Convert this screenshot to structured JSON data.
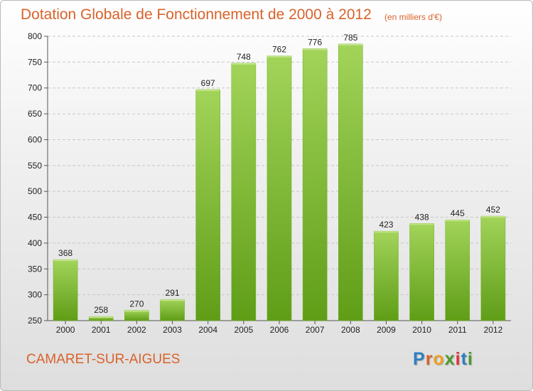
{
  "title": "Dotation Globale de Fonctionnement de 2000 à 2012",
  "subtitle": "(en milliers d'€)",
  "commune": "CAMARET-SUR-AIGUES",
  "brand": {
    "text": "Proxiti",
    "letter_colors": [
      "#2f7fc1",
      "#d9622b",
      "#f0a020",
      "#4a9b2d",
      "#e53030",
      "#2f7fc1",
      "#4a9b2d"
    ]
  },
  "colors": {
    "bar_light": "#a2d45a",
    "bar_dark": "#5f9d17",
    "bar_stroke": "#6fae22",
    "grid": "#c7c7c7",
    "axis": "#555555"
  },
  "chart_data": {
    "type": "bar",
    "categories": [
      "2000",
      "2001",
      "2002",
      "2003",
      "2004",
      "2005",
      "2006",
      "2007",
      "2008",
      "2009",
      "2010",
      "2011",
      "2012"
    ],
    "values": [
      368,
      258,
      270,
      291,
      697,
      748,
      762,
      776,
      785,
      423,
      438,
      445,
      452
    ],
    "title": "Dotation Globale de Fonctionnement de 2000 à 2012",
    "ylabel": "",
    "xlabel": "",
    "ylim": [
      250,
      800
    ],
    "yticks": [
      250,
      300,
      350,
      400,
      450,
      500,
      550,
      600,
      650,
      700,
      750,
      800
    ],
    "grid": true
  }
}
